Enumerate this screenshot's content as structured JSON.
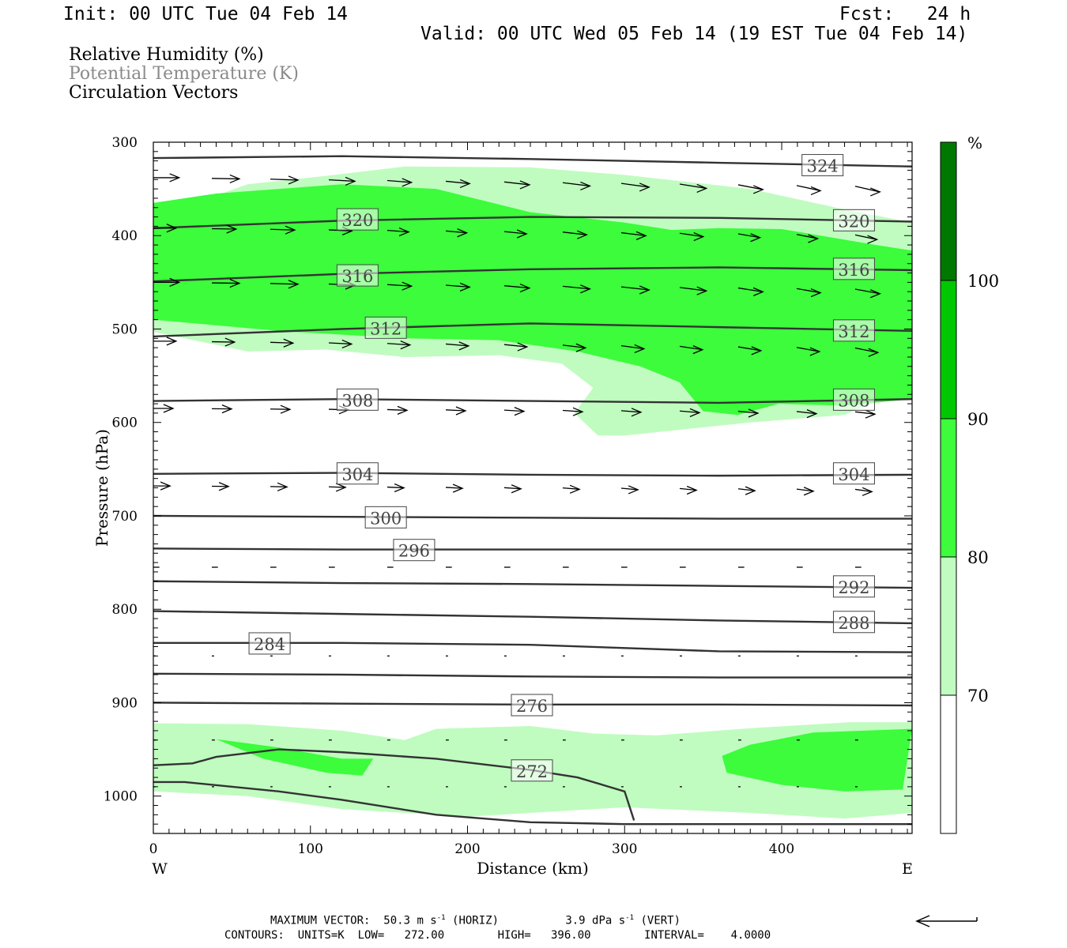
{
  "header": {
    "init": "Init: 00 UTC Tue 04 Feb 14",
    "fcst": "Fcst:   24 h",
    "valid": "Valid: 00 UTC Wed 05 Feb 14 (19 EST Tue 04 Feb 14)"
  },
  "fields": [
    {
      "label": "Relative Humidity (%)",
      "color": "#000000"
    },
    {
      "label": "Potential Temperature (K)",
      "color": "#8a8a8a"
    },
    {
      "label": "Circulation Vectors",
      "color": "#000000"
    }
  ],
  "colors": {
    "rh_70_80": "#c0fcc0",
    "rh_80_90": "#3cfc3c",
    "rh_90_100": "#00c800",
    "rh_100_plus": "#007800",
    "contour": "#333333"
  },
  "footer": {
    "max_vector_label": "MAXIMUM VECTOR:",
    "horiz_value": "50.3 m s",
    "horiz_exp": "-1",
    "horiz_tag": "(HORIZ)",
    "vert_value": "3.9 dPa s",
    "vert_exp": "-1",
    "vert_tag": "(VERT)",
    "contours_line": "CONTOURS:  UNITS=K  LOW=   272.00        HIGH=   396.00        INTERVAL=    4.0000"
  },
  "chart_data": {
    "type": "cross-section",
    "xlabel": "Distance (km)",
    "ylabel": "Pressure (hPa)",
    "xlim": [
      0,
      483
    ],
    "ylim": [
      1040,
      300
    ],
    "x_ticks": [
      0,
      100,
      200,
      300,
      400
    ],
    "y_ticks": [
      300,
      400,
      500,
      600,
      700,
      800,
      900,
      1000
    ],
    "x_end_labels": {
      "left": "W",
      "right": "E"
    },
    "colorbar": {
      "unit": "%",
      "levels": [
        70,
        80,
        90,
        100
      ]
    },
    "contour_levels": [
      272,
      276,
      284,
      288,
      292,
      296,
      300,
      304,
      308,
      312,
      316,
      320,
      324
    ],
    "theta_contours": [
      {
        "label": "",
        "points": [
          [
            0,
            317
          ],
          [
            120,
            315
          ],
          [
            240,
            318
          ],
          [
            360,
            322
          ],
          [
            483,
            326
          ]
        ]
      },
      {
        "label": "324",
        "label_pos": [
          426,
          325
        ]
      },
      {
        "label": "",
        "points": [
          [
            0,
            392
          ],
          [
            120,
            384
          ],
          [
            240,
            380
          ],
          [
            360,
            381
          ],
          [
            483,
            385
          ]
        ]
      },
      {
        "label": "320",
        "label_pos": [
          130,
          383
        ]
      },
      {
        "label": "320",
        "label_pos": [
          446,
          384
        ]
      },
      {
        "label": "",
        "points": [
          [
            0,
            449
          ],
          [
            120,
            441
          ],
          [
            240,
            436
          ],
          [
            360,
            434
          ],
          [
            483,
            437
          ]
        ]
      },
      {
        "label": "316",
        "label_pos": [
          130,
          443
        ]
      },
      {
        "label": "316",
        "label_pos": [
          446,
          436
        ]
      },
      {
        "label": "",
        "points": [
          [
            0,
            508
          ],
          [
            120,
            500
          ],
          [
            240,
            494
          ],
          [
            360,
            498
          ],
          [
            483,
            502
          ]
        ]
      },
      {
        "label": "312",
        "label_pos": [
          148,
          499
        ]
      },
      {
        "label": "312",
        "label_pos": [
          446,
          502
        ]
      },
      {
        "label": "",
        "points": [
          [
            0,
            577
          ],
          [
            120,
            575
          ],
          [
            240,
            577
          ],
          [
            360,
            579
          ],
          [
            483,
            575
          ]
        ]
      },
      {
        "label": "308",
        "label_pos": [
          130,
          576
        ]
      },
      {
        "label": "308",
        "label_pos": [
          446,
          576
        ]
      },
      {
        "label": "",
        "points": [
          [
            0,
            655
          ],
          [
            120,
            654
          ],
          [
            240,
            656
          ],
          [
            360,
            657
          ],
          [
            483,
            656
          ]
        ]
      },
      {
        "label": "304",
        "label_pos": [
          130,
          655
        ]
      },
      {
        "label": "304",
        "label_pos": [
          446,
          655
        ]
      },
      {
        "label": "",
        "points": [
          [
            0,
            700
          ],
          [
            120,
            701
          ],
          [
            240,
            702
          ],
          [
            360,
            703
          ],
          [
            483,
            703
          ]
        ]
      },
      {
        "label": "300",
        "label_pos": [
          148,
          702
        ]
      },
      {
        "label": "",
        "points": [
          [
            0,
            735
          ],
          [
            120,
            736
          ],
          [
            240,
            736
          ],
          [
            360,
            736
          ],
          [
            483,
            736
          ]
        ]
      },
      {
        "label": "296",
        "label_pos": [
          166,
          737
        ]
      },
      {
        "label": "",
        "points": [
          [
            0,
            770
          ],
          [
            120,
            772
          ],
          [
            240,
            773
          ],
          [
            360,
            775
          ],
          [
            483,
            777
          ]
        ]
      },
      {
        "label": "292",
        "label_pos": [
          446,
          776
        ]
      },
      {
        "label": "",
        "points": [
          [
            0,
            802
          ],
          [
            120,
            805
          ],
          [
            240,
            808
          ],
          [
            360,
            812
          ],
          [
            483,
            815
          ]
        ]
      },
      {
        "label": "288",
        "label_pos": [
          446,
          814
        ]
      },
      {
        "label": "",
        "points": [
          [
            0,
            836
          ],
          [
            120,
            836
          ],
          [
            240,
            838
          ],
          [
            360,
            845
          ],
          [
            483,
            846
          ]
        ]
      },
      {
        "label": "284",
        "label_pos": [
          74,
          837
        ]
      },
      {
        "label": "",
        "points": [
          [
            0,
            869
          ],
          [
            120,
            870
          ],
          [
            240,
            872
          ],
          [
            360,
            873
          ],
          [
            483,
            873
          ]
        ]
      },
      {
        "label": "",
        "points": [
          [
            0,
            900
          ],
          [
            120,
            901
          ],
          [
            240,
            902
          ],
          [
            360,
            902
          ],
          [
            483,
            903
          ]
        ]
      },
      {
        "label": "276",
        "label_pos": [
          241,
          903
        ]
      },
      {
        "label": "",
        "points": [
          [
            0,
            967
          ],
          [
            25,
            965
          ],
          [
            40,
            958
          ],
          [
            80,
            950
          ],
          [
            120,
            953
          ],
          [
            180,
            960
          ],
          [
            240,
            972
          ],
          [
            270,
            980
          ],
          [
            300,
            995
          ],
          [
            306,
            1026
          ]
        ]
      },
      {
        "label": "272",
        "label_pos": [
          241,
          973
        ]
      },
      {
        "label": "",
        "points": [
          [
            0,
            985
          ],
          [
            20,
            985
          ],
          [
            80,
            995
          ],
          [
            120,
            1004
          ],
          [
            180,
            1020
          ],
          [
            240,
            1028
          ],
          [
            300,
            1030
          ],
          [
            483,
            1030
          ]
        ]
      }
    ],
    "rh_regions": [
      {
        "band": "70-80",
        "points": [
          [
            0,
            368
          ],
          [
            30,
            363
          ],
          [
            60,
            345
          ],
          [
            110,
            336
          ],
          [
            160,
            326
          ],
          [
            240,
            327
          ],
          [
            300,
            335
          ],
          [
            380,
            350
          ],
          [
            440,
            372
          ],
          [
            483,
            386
          ],
          [
            483,
            560
          ],
          [
            440,
            592
          ],
          [
            380,
            600
          ],
          [
            300,
            614
          ],
          [
            283,
            614
          ],
          [
            268,
            590
          ],
          [
            280,
            563
          ],
          [
            260,
            537
          ],
          [
            220,
            528
          ],
          [
            160,
            530
          ],
          [
            110,
            522
          ],
          [
            60,
            524
          ],
          [
            0,
            503
          ]
        ]
      },
      {
        "band": "80-90",
        "points": [
          [
            0,
            365
          ],
          [
            40,
            355
          ],
          [
            120,
            345
          ],
          [
            180,
            350
          ],
          [
            240,
            375
          ],
          [
            300,
            386
          ],
          [
            330,
            394
          ],
          [
            360,
            392
          ],
          [
            400,
            393
          ],
          [
            460,
            410
          ],
          [
            483,
            416
          ],
          [
            483,
            575
          ],
          [
            440,
            582
          ],
          [
            398,
            580
          ],
          [
            372,
            592
          ],
          [
            350,
            588
          ],
          [
            335,
            557
          ],
          [
            310,
            540
          ],
          [
            270,
            524
          ],
          [
            220,
            512
          ],
          [
            160,
            510
          ],
          [
            80,
            502
          ],
          [
            0,
            490
          ]
        ]
      },
      {
        "band": "70-80",
        "points": [
          [
            0,
            922
          ],
          [
            60,
            923
          ],
          [
            120,
            930
          ],
          [
            160,
            940
          ],
          [
            180,
            928
          ],
          [
            240,
            925
          ],
          [
            280,
            933
          ],
          [
            320,
            935
          ],
          [
            383,
            927
          ],
          [
            443,
            921
          ],
          [
            483,
            921
          ],
          [
            483,
            1018
          ],
          [
            440,
            1024
          ],
          [
            380,
            1018
          ],
          [
            300,
            1012
          ],
          [
            200,
            1022
          ],
          [
            120,
            1014
          ],
          [
            60,
            1000
          ],
          [
            0,
            995
          ]
        ]
      },
      {
        "band": "80-90",
        "points": [
          [
            40,
            939
          ],
          [
            80,
            948
          ],
          [
            120,
            960
          ],
          [
            140,
            960
          ],
          [
            133,
            978
          ],
          [
            110,
            975
          ],
          [
            70,
            960
          ]
        ]
      },
      {
        "band": "80-90",
        "points": [
          [
            362,
            957
          ],
          [
            380,
            945
          ],
          [
            420,
            932
          ],
          [
            483,
            928
          ],
          [
            477,
            993
          ],
          [
            440,
            995
          ],
          [
            400,
            988
          ],
          [
            365,
            975
          ]
        ]
      }
    ],
    "max_vector": {
      "horiz_m_s": 50.3,
      "vert_dPa_s": 3.9
    }
  }
}
